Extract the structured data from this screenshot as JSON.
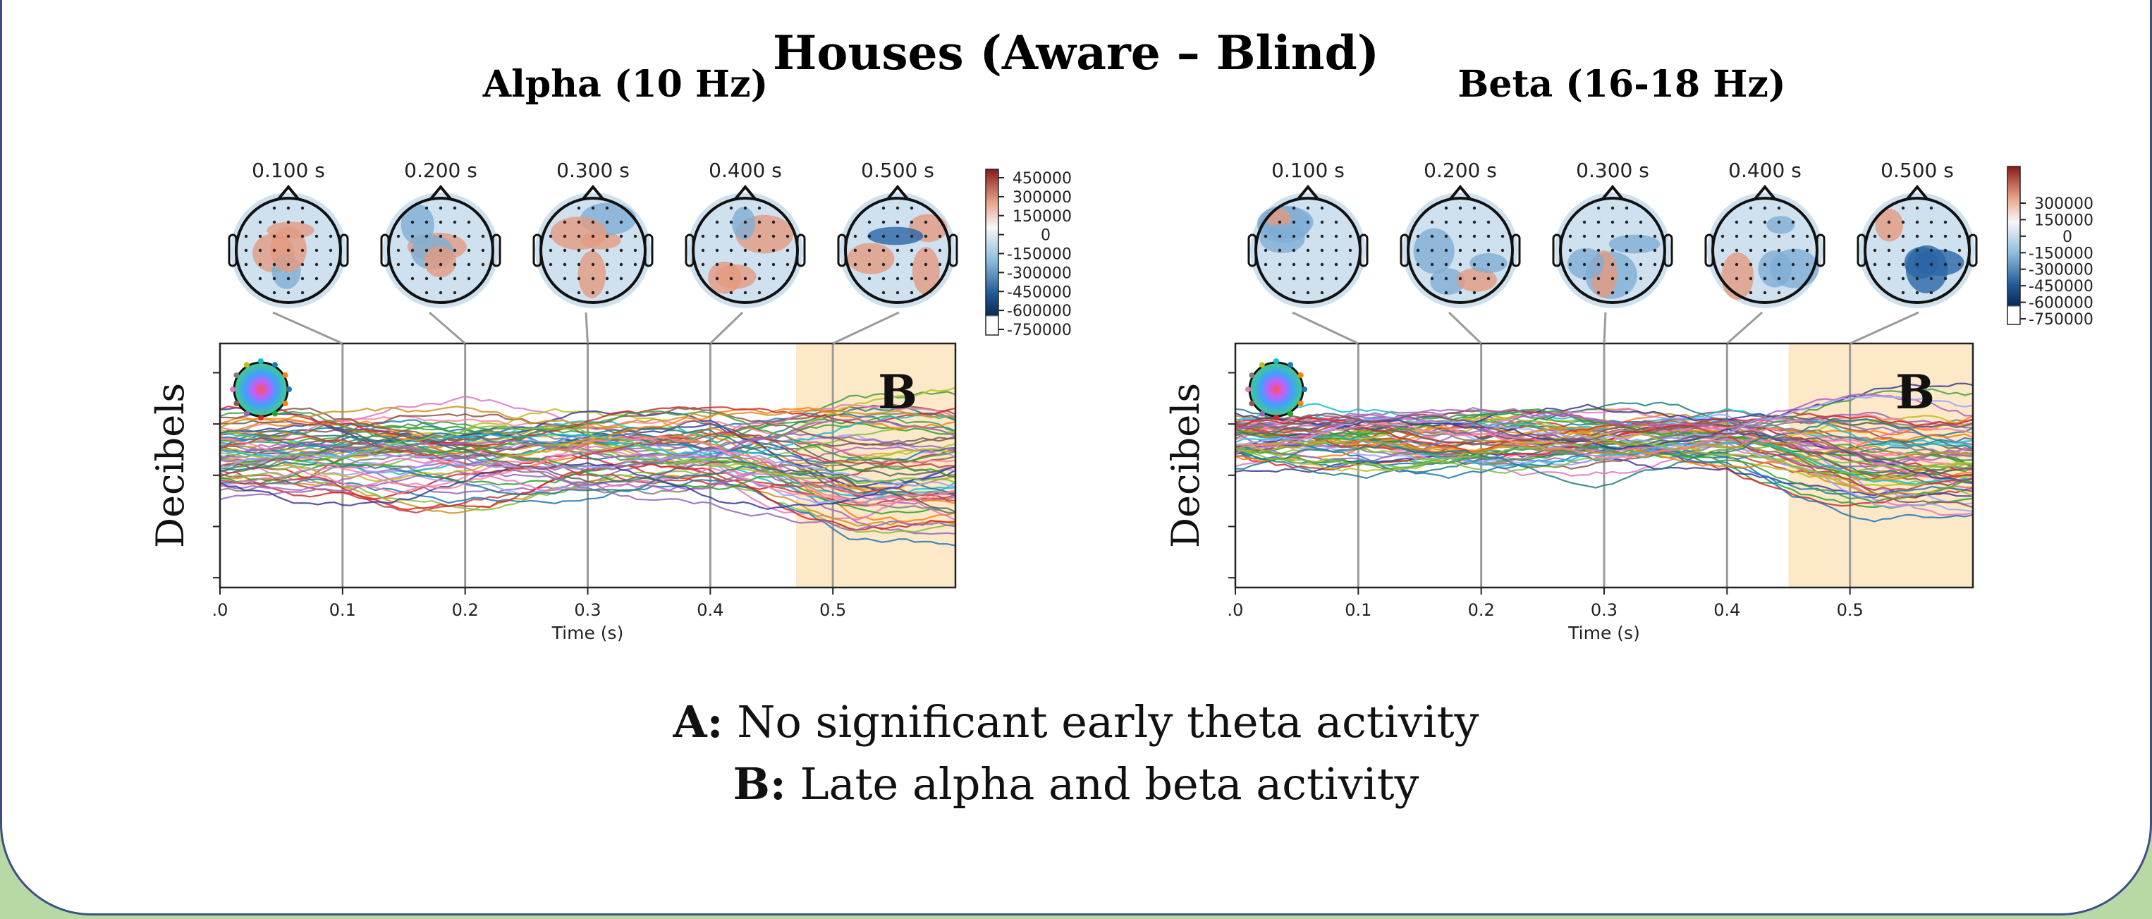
{
  "page": {
    "title": "Houses (Aware – Blind)",
    "notes": [
      {
        "key": "A:",
        "text": " No significant early theta activity"
      },
      {
        "key": "B:",
        "text": " Late alpha and beta activity"
      }
    ]
  },
  "colors": {
    "background": "#b8d9a6",
    "card_border": "#3d4f86",
    "highlight": "#fde9c8"
  },
  "chart_data": [
    {
      "type": "line",
      "title": "Alpha (10 Hz)",
      "xlabel": "Time (s)",
      "ylabel": "Decibels",
      "x_ticks": [
        ".0",
        "0.1",
        "0.2",
        "0.3",
        "0.4",
        "0.5"
      ],
      "xlim": [
        0,
        0.6
      ],
      "highlight_region": {
        "x": [
          0.47,
          0.6
        ],
        "label": "B"
      },
      "topomap_times": [
        "0.100 s",
        "0.200 s",
        "0.300 s",
        "0.400 s",
        "0.500 s"
      ],
      "topomap_time_values": [
        0.1,
        0.2,
        0.3,
        0.4,
        0.5
      ],
      "colorbar_ticks": [
        "450000",
        "300000",
        "150000",
        "0",
        "-150000",
        "-300000",
        "-450000",
        "-600000",
        "-750000"
      ],
      "series_count": 60,
      "late_drop": 0.34,
      "spread": 0.22
    },
    {
      "type": "line",
      "title": "Beta (16-18 Hz)",
      "xlabel": "Time (s)",
      "ylabel": "Decibels",
      "x_ticks": [
        ".0",
        "0.1",
        "0.2",
        "0.3",
        "0.4",
        "0.5"
      ],
      "xlim": [
        0,
        0.6
      ],
      "highlight_region": {
        "x": [
          0.45,
          0.6
        ],
        "label": "B"
      },
      "topomap_times": [
        "0.100 s",
        "0.200 s",
        "0.300 s",
        "0.400 s",
        "0.500 s"
      ],
      "topomap_time_values": [
        0.1,
        0.2,
        0.3,
        0.4,
        0.5
      ],
      "colorbar_ticks": [
        "300000",
        "150000",
        "0",
        "-150000",
        "-300000",
        "-450000",
        "-600000",
        "-750000"
      ],
      "series_count": 60,
      "late_drop": 0.38,
      "spread": 0.14
    }
  ]
}
